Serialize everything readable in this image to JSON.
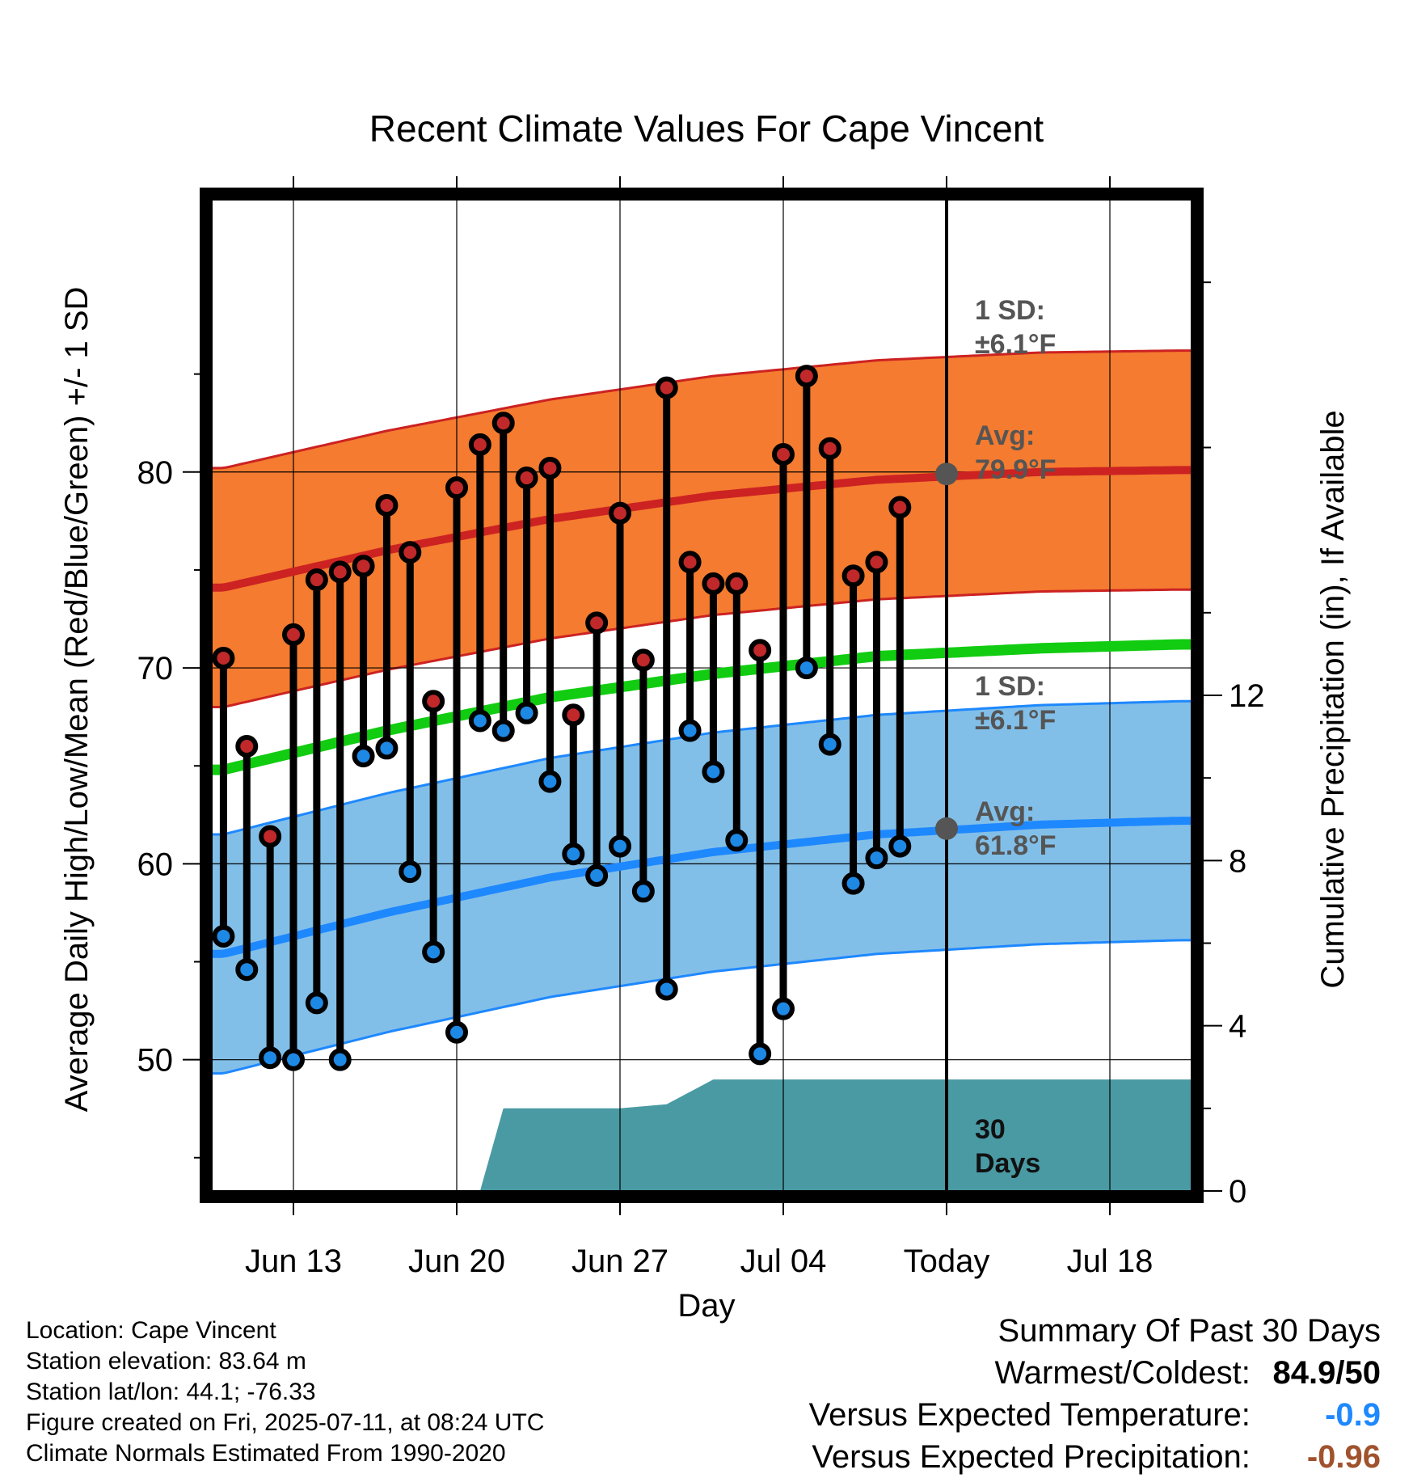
{
  "chart_data": {
    "type": "line",
    "title": "Recent Climate Values For Cape Vincent",
    "xlabel": "Day",
    "ylabel": "Average Daily High/Low/Mean (Red/Blue/Green) +/- 1 SD",
    "y2label": "Cumulative Precipitation (in), If Available",
    "x_ticks": [
      "Jun 13",
      "Jun 20",
      "Jun 27",
      "Jul 04",
      "Today",
      "Jul 18"
    ],
    "y_ticks": [
      "50",
      "60",
      "70",
      "80"
    ],
    "y2_ticks": [
      "0",
      "4",
      "8",
      "12"
    ],
    "ylim": [
      43.3,
      93.9
    ],
    "y2lim": [
      0,
      24
    ],
    "xlim": [
      "2025-06-09T12:00",
      "2025-07-21T12:00"
    ],
    "today": "2025-07-11",
    "dates": [
      "2025-06-10",
      "2025-06-11",
      "2025-06-12",
      "2025-06-13",
      "2025-06-14",
      "2025-06-15",
      "2025-06-16",
      "2025-06-17",
      "2025-06-18",
      "2025-06-19",
      "2025-06-20",
      "2025-06-21",
      "2025-06-22",
      "2025-06-23",
      "2025-06-24",
      "2025-06-25",
      "2025-06-26",
      "2025-06-27",
      "2025-06-28",
      "2025-06-29",
      "2025-06-30",
      "2025-07-01",
      "2025-07-02",
      "2025-07-03",
      "2025-07-04",
      "2025-07-05",
      "2025-07-06",
      "2025-07-07",
      "2025-07-08",
      "2025-07-09",
      "2025-07-10"
    ],
    "series": [
      {
        "name": "High",
        "color": "#c0282a",
        "values": [
          70.5,
          66.0,
          61.4,
          71.7,
          74.5,
          74.9,
          75.2,
          78.3,
          75.9,
          68.3,
          79.2,
          81.4,
          82.5,
          79.7,
          80.2,
          67.6,
          72.3,
          77.9,
          70.4,
          84.3,
          75.4,
          74.3,
          74.3,
          70.9,
          80.9,
          84.9,
          81.2,
          74.7,
          75.4,
          78.2,
          null
        ]
      },
      {
        "name": "Low",
        "color": "#1e88e5",
        "values": [
          56.3,
          54.6,
          50.1,
          50.0,
          52.9,
          50.0,
          65.5,
          65.9,
          59.6,
          55.5,
          51.4,
          67.3,
          66.8,
          67.7,
          64.2,
          60.5,
          59.4,
          60.9,
          58.6,
          53.6,
          66.8,
          64.7,
          61.2,
          50.3,
          52.6,
          70.0,
          66.1,
          59.0,
          60.3,
          60.9,
          null
        ]
      }
    ],
    "normals": {
      "x": [
        "2025-06-10",
        "2025-06-17",
        "2025-06-24",
        "2025-07-01",
        "2025-07-08",
        "2025-07-15",
        "2025-07-21"
      ],
      "avg_high": [
        74.1,
        76.0,
        77.6,
        78.8,
        79.6,
        80.0,
        80.1
      ],
      "avg_low": [
        55.4,
        57.5,
        59.3,
        60.6,
        61.5,
        62.0,
        62.2
      ],
      "avg_mean": [
        64.8,
        66.8,
        68.5,
        69.7,
        70.6,
        71.0,
        71.2
      ],
      "sd": 6.1,
      "colors": {
        "high_band": "#f47b2f",
        "high_line": "#cc2222",
        "low_band": "#82bfe8",
        "low_line": "#1e88ff",
        "mean_line": "#11cc11"
      }
    },
    "precipitation": {
      "color": "#4a9aa4",
      "dates": [
        "2025-06-10",
        "2025-06-20",
        "2025-06-21",
        "2025-06-22",
        "2025-06-27",
        "2025-06-29",
        "2025-07-01",
        "2025-07-03",
        "2025-07-11",
        "2025-07-21"
      ],
      "values": [
        0,
        0,
        0,
        2.0,
        2.0,
        2.1,
        2.7,
        2.7,
        2.7,
        2.7
      ]
    },
    "annotations": {
      "high_sd": [
        "1 SD:",
        "±6.1°F"
      ],
      "high_avg": [
        "Avg:",
        "79.9°F"
      ],
      "low_sd": [
        "1 SD:",
        "±6.1°F"
      ],
      "low_avg": [
        "Avg:",
        "61.8°F"
      ],
      "precip_days": [
        "30",
        "Days"
      ],
      "today_high_avg": 79.9,
      "today_low_avg": 61.8
    }
  },
  "station_info": {
    "location": "Location: Cape Vincent",
    "elevation": "Station elevation: 83.64 m",
    "latlon": "Station lat/lon: 44.1; -76.33",
    "created": "Figure created on Fri, 2025-07-11, at 08:24 UTC",
    "normals_source": "Climate Normals Estimated From 1990-2020"
  },
  "summary": {
    "heading": "Summary Of Past 30 Days",
    "warmest_coldest_label": "Warmest/Coldest:",
    "warmest_coldest_value": "84.9/50",
    "temp_label": "Versus Expected Temperature:",
    "temp_value": "-0.9",
    "temp_color": "#1e88ff",
    "precip_label": "Versus Expected Precipitation:",
    "precip_value": "-0.96",
    "precip_color": "#a0522d"
  }
}
